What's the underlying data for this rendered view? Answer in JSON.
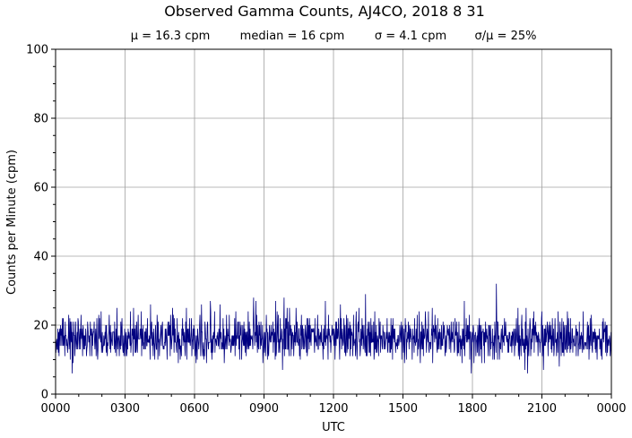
{
  "chart_data": {
    "type": "line",
    "title": "Observed Gamma Counts, AJ4CO, 2018 8 31",
    "stats": {
      "mean": "μ = 16.3 cpm",
      "median": "median = 16 cpm",
      "sigma": "σ = 4.1 cpm",
      "ratio": "σ/μ = 25%"
    },
    "xlabel": "UTC",
    "ylabel": "Counts per Minute (cpm)",
    "x_tick_labels": [
      "0000",
      "0300",
      "0600",
      "0900",
      "1200",
      "1500",
      "1800",
      "2100",
      "0000"
    ],
    "y_ticks": [
      0,
      20,
      40,
      60,
      80,
      100
    ],
    "ylim": [
      0,
      100
    ],
    "xlim_minutes": [
      0,
      1440
    ],
    "grid": true,
    "line_color": "#000080",
    "series": [
      {
        "values": [
          16,
          14,
          18,
          17,
          12,
          15,
          19,
          16,
          21,
          13,
          17,
          15,
          14,
          18,
          20,
          16,
          13,
          17,
          22,
          15,
          18,
          14,
          16,
          19,
          13,
          17,
          15,
          21,
          16,
          14,
          18,
          12,
          15,
          17,
          20,
          16,
          14,
          19,
          13,
          18,
          16,
          15,
          23,
          14,
          17,
          12,
          16,
          19,
          15,
          18,
          14,
          17,
          21,
          13,
          16,
          15,
          18,
          14,
          20,
          17,
          16,
          13,
          15,
          19,
          17,
          14,
          22,
          16,
          15,
          18,
          13,
          17,
          16,
          14,
          20,
          15,
          18,
          12,
          16,
          19,
          14,
          17,
          15,
          21,
          16,
          13,
          18,
          15,
          17,
          14,
          19,
          16,
          15,
          18,
          14,
          17,
          13,
          20,
          16,
          15,
          18,
          17,
          14,
          16,
          19,
          13,
          15,
          21,
          17,
          14,
          16,
          18,
          15,
          13,
          19,
          16,
          17,
          14,
          22,
          15,
          16,
          18,
          13,
          17,
          15,
          19,
          14,
          16,
          20,
          15,
          17,
          13,
          18,
          16,
          14,
          19,
          15,
          17,
          16,
          21,
          14,
          15,
          18,
          13,
          16,
          17,
          15,
          19,
          14,
          20,
          16,
          15,
          17,
          13,
          18,
          16,
          14,
          19,
          15,
          23,
          14,
          17,
          16,
          15,
          18,
          13,
          16,
          19,
          14,
          17,
          15,
          16,
          20,
          14,
          17,
          15,
          18,
          13,
          16,
          19
        ]
      }
    ],
    "peak": {
      "minute": 1142,
      "value": 32
    }
  }
}
